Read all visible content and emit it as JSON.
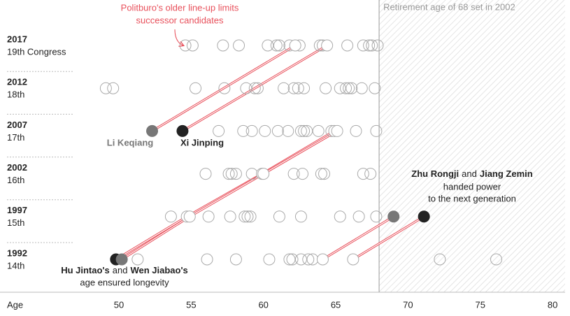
{
  "chart_data": {
    "type": "dot",
    "x_label": "Age",
    "xlim": [
      42,
      81
    ],
    "xticks": [
      50,
      55,
      60,
      65,
      70,
      75,
      80
    ],
    "categories": [
      "2017",
      "2012",
      "2007",
      "2002",
      "1997",
      "1992"
    ],
    "subcategories": [
      "19th Congress",
      "18th",
      "17th",
      "16th",
      "15th",
      "14th"
    ],
    "dot_color": "#aaaaaa",
    "line_color": "#e8505b",
    "rows": [
      [
        54.6,
        55.1,
        57.2,
        58.3,
        60.3,
        60.9,
        61.1,
        61.8,
        62.5,
        63.9,
        64.1,
        65.8,
        66.9,
        67.3,
        67.5,
        67.9
      ],
      [
        49.1,
        49.6,
        55.3,
        57.3,
        58.8,
        59.4,
        59.6,
        61.4,
        62.1,
        62.4,
        62.8,
        64.3,
        65.3,
        65.7,
        65.9,
        66.1,
        66.8,
        67.7
      ],
      [
        56.9,
        58.6,
        59.2,
        60.1,
        61.0,
        61.7,
        62.6,
        62.8,
        63.0,
        63.8,
        64.7,
        66.4,
        67.8
      ],
      [
        56.0,
        57.6,
        57.8,
        58.1,
        59.2,
        62.1,
        62.7,
        64.0,
        64.2,
        66.9,
        67.4
      ],
      [
        53.6,
        56.2,
        57.7,
        58.7,
        58.9,
        59.1,
        61.1,
        62.6,
        65.3,
        66.6,
        67.8
      ],
      [
        51.3,
        56.1,
        58.1,
        60.4,
        61.8,
        62.0,
        62.6,
        63.1,
        63.4,
        72.2,
        76.1
      ]
    ],
    "people": [
      {
        "name": "Li Keqiang",
        "color": "#777777",
        "highlight": "2007",
        "values": [
          62.2,
          null,
          52.3,
          null,
          null,
          null
        ]
      },
      {
        "name": "Xi Jinping",
        "color": "#222222",
        "highlight": "2007",
        "values": [
          64.4,
          null,
          54.4,
          null,
          null,
          null
        ]
      },
      {
        "name": "Hu Jintao's",
        "color": "#222222",
        "highlight": "1992",
        "values": [
          null,
          null,
          64.9,
          59.9,
          54.7,
          49.8
        ]
      },
      {
        "name": "Wen Jiabao's",
        "color": "#777777",
        "highlight": "1992",
        "values": [
          null,
          null,
          65.1,
          60.0,
          54.9,
          50.2
        ]
      },
      {
        "name": "Zhu Rongji",
        "color": "#777777",
        "highlight": "1997",
        "values": [
          null,
          null,
          null,
          null,
          69.0,
          64.1
        ]
      },
      {
        "name": "Jiang Zemin",
        "color": "#222222",
        "highlight": "1997",
        "values": [
          null,
          null,
          null,
          null,
          71.1,
          66.2
        ]
      }
    ],
    "retirement": {
      "value": 68,
      "label": "Retirement age of 68 set in 2002"
    },
    "annotations": {
      "older": [
        "Politburo's older line-up limits",
        "successor candidates"
      ],
      "hu_wen": [
        "and",
        "age ensured longevity"
      ],
      "zhu_jiang": [
        "and",
        "handed power",
        "to the next generation"
      ]
    }
  }
}
